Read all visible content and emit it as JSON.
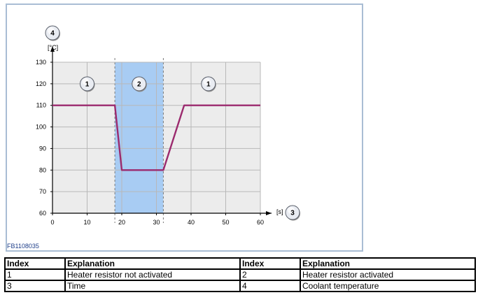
{
  "figure": {
    "code": "FB1108035"
  },
  "chart_data": {
    "type": "line",
    "xlabel": "[s]",
    "ylabel": "[°C]",
    "xlim": [
      0,
      60
    ],
    "ylim": [
      60,
      130
    ],
    "x_ticks": [
      0,
      10,
      20,
      30,
      40,
      50,
      60
    ],
    "y_ticks": [
      60,
      70,
      80,
      90,
      100,
      110,
      120,
      130
    ],
    "grid": true,
    "series": [
      {
        "x": [
          0,
          18,
          20,
          32,
          38,
          60
        ],
        "y": [
          110,
          110,
          80,
          80,
          110,
          110
        ],
        "color": "#9b2a6e"
      }
    ],
    "shaded_region": {
      "x_start": 18,
      "x_end": 32,
      "color": "#a8ccf3"
    },
    "region_badges": [
      {
        "label": "1",
        "x": 10,
        "y": 120
      },
      {
        "label": "2",
        "x": 25,
        "y": 120
      },
      {
        "label": "1",
        "x": 45,
        "y": 120
      }
    ],
    "axis_badges": {
      "x_axis": "3",
      "y_axis": "4"
    },
    "plot_bg": "#ececec",
    "grid_color": "#b8b8b8"
  },
  "legend_table": {
    "headers": [
      "Index",
      "Explanation",
      "Index",
      "Explanation"
    ],
    "rows": [
      [
        "1",
        "Heater resistor not activated",
        "2",
        "Heater resistor activated"
      ],
      [
        "3",
        "Time",
        "4",
        "Coolant temperature"
      ]
    ]
  }
}
